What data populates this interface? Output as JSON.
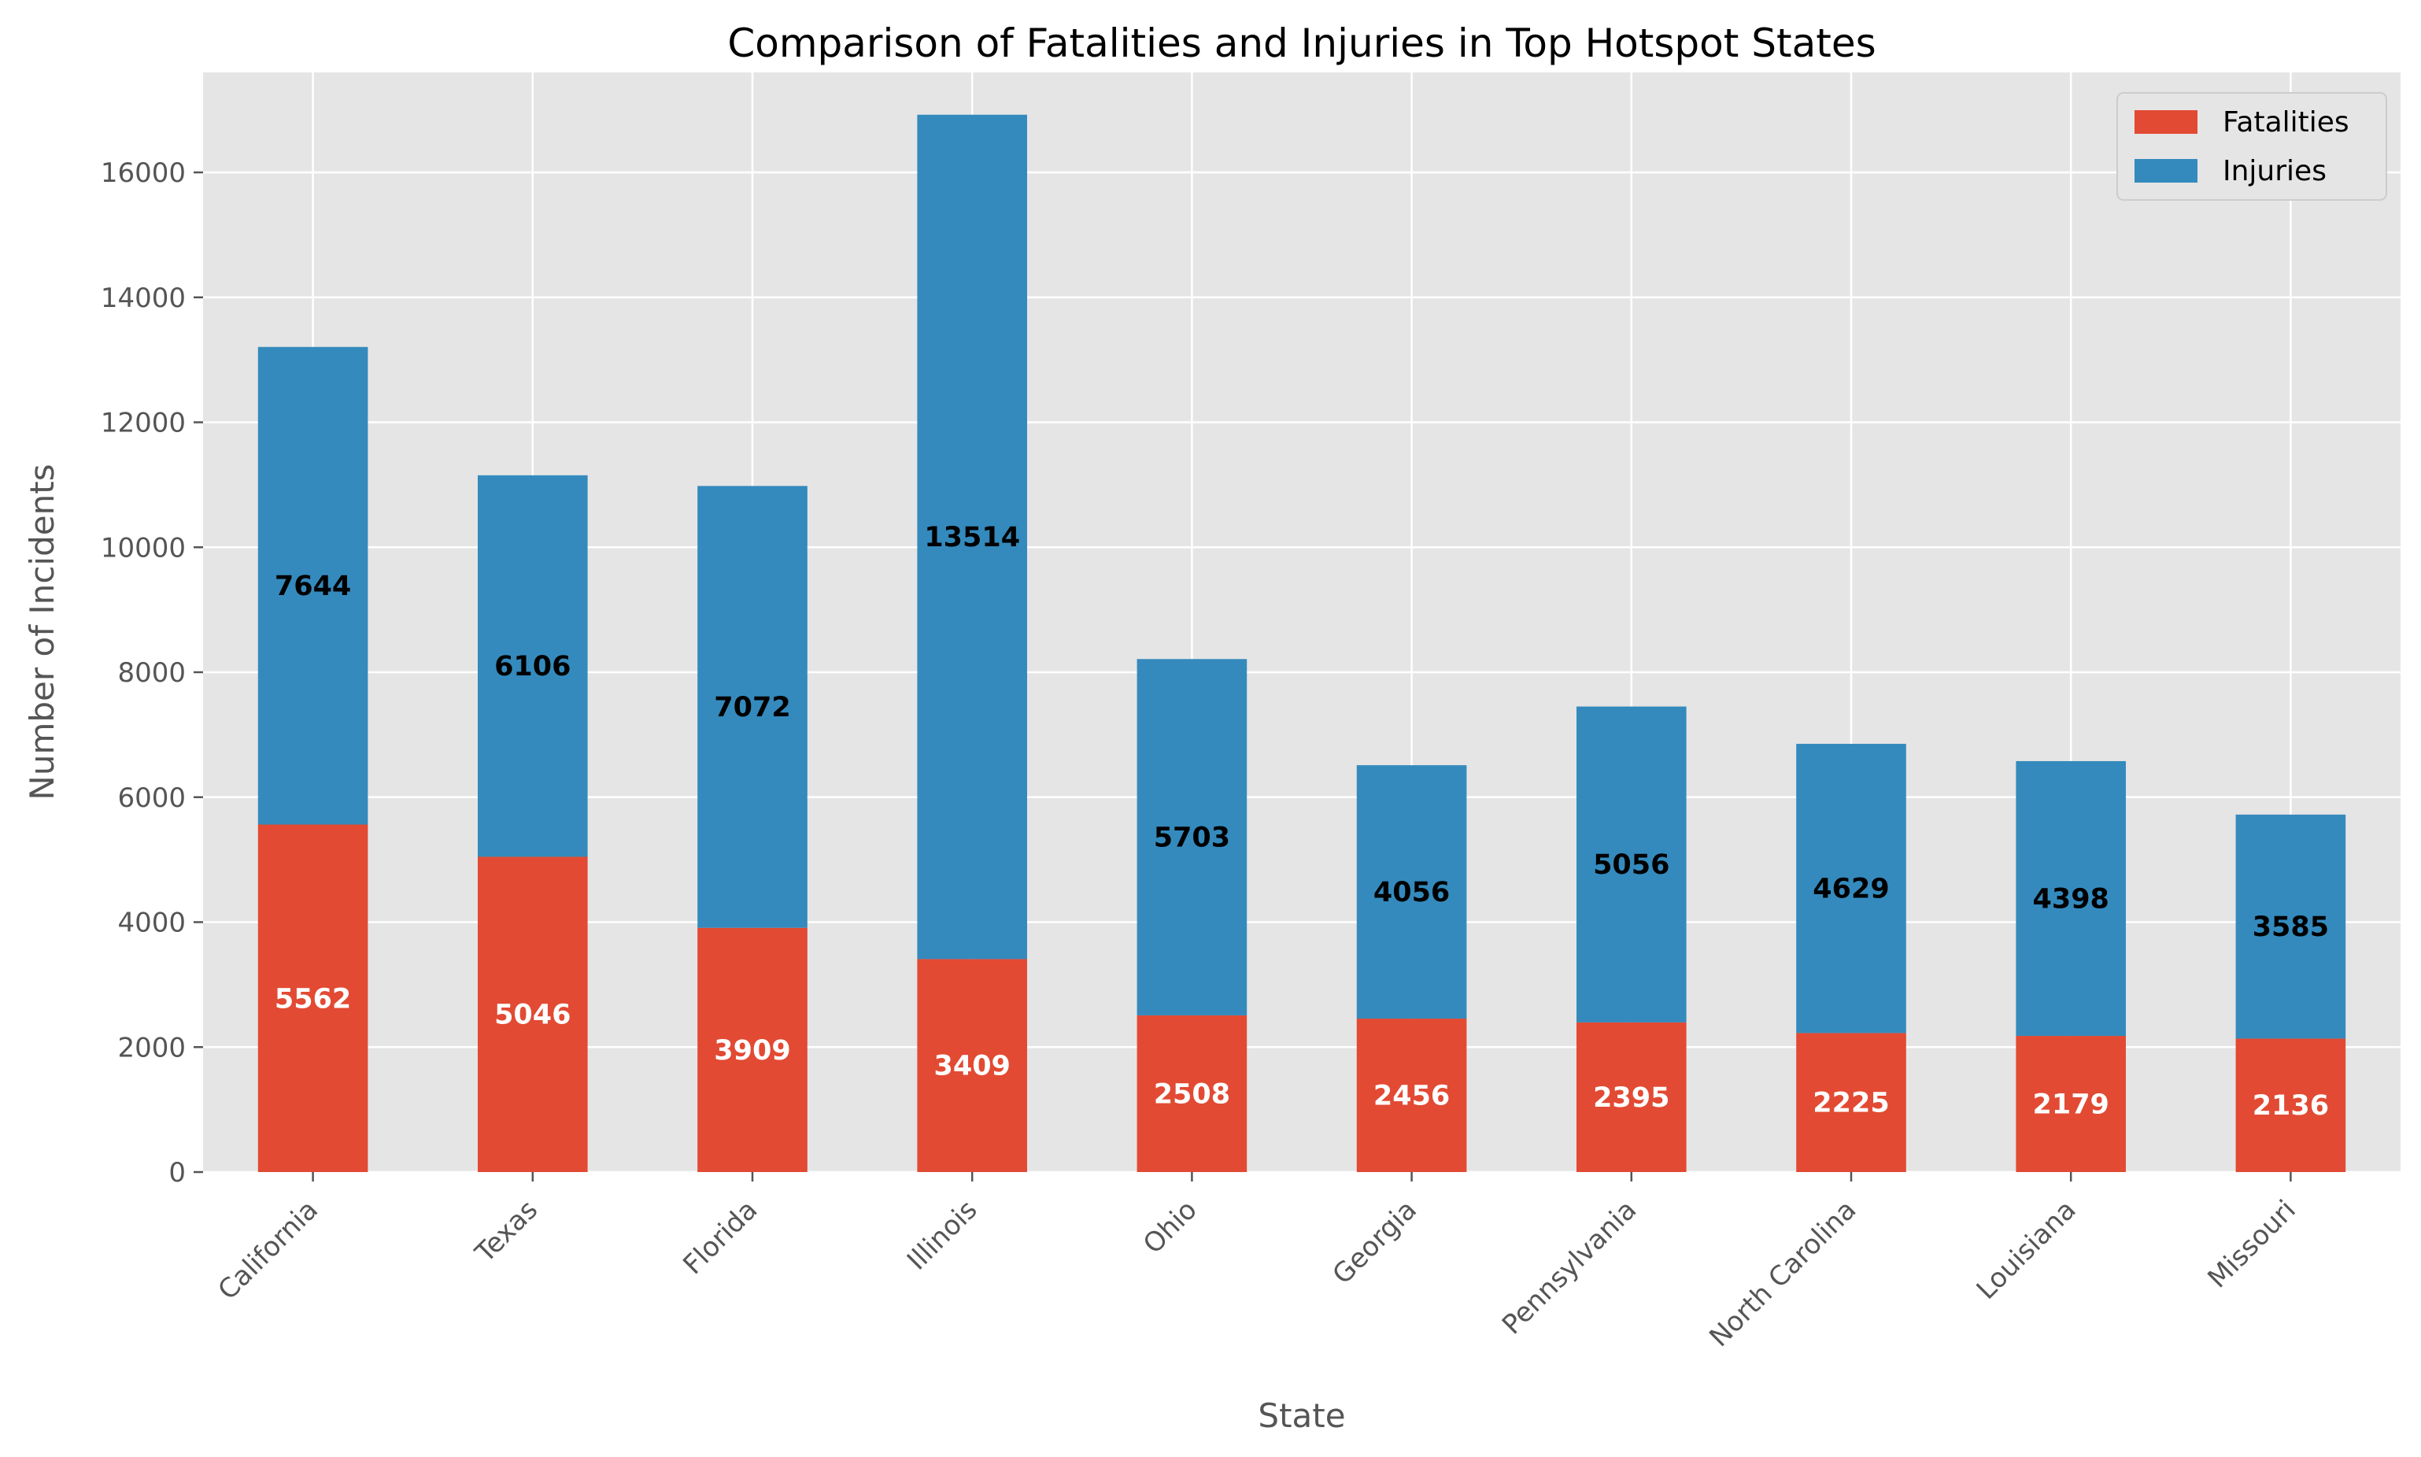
{
  "chart_data": {
    "type": "bar",
    "stacked": true,
    "title": "Comparison of Fatalities and Injuries in Top Hotspot States",
    "xlabel": "State",
    "ylabel": "Number of Incidents",
    "categories": [
      "California",
      "Texas",
      "Florida",
      "Illinois",
      "Ohio",
      "Georgia",
      "Pennsylvania",
      "North Carolina",
      "Louisiana",
      "Missouri"
    ],
    "series": [
      {
        "name": "Fatalities",
        "color": "#E24A33",
        "label_color": "#ffffff",
        "values": [
          5562,
          5046,
          3909,
          3409,
          2508,
          2456,
          2395,
          2225,
          2179,
          2136
        ]
      },
      {
        "name": "Injuries",
        "color": "#348ABD",
        "label_color": "#000000",
        "values": [
          7644,
          6106,
          7072,
          13514,
          5703,
          4056,
          5056,
          4629,
          4398,
          3585
        ]
      }
    ],
    "ylim": [
      0,
      17600
    ],
    "yticks": [
      0,
      2000,
      4000,
      6000,
      8000,
      10000,
      12000,
      14000,
      16000
    ],
    "grid": true,
    "legend_position": "top-right",
    "background": "#E5E5E5"
  }
}
